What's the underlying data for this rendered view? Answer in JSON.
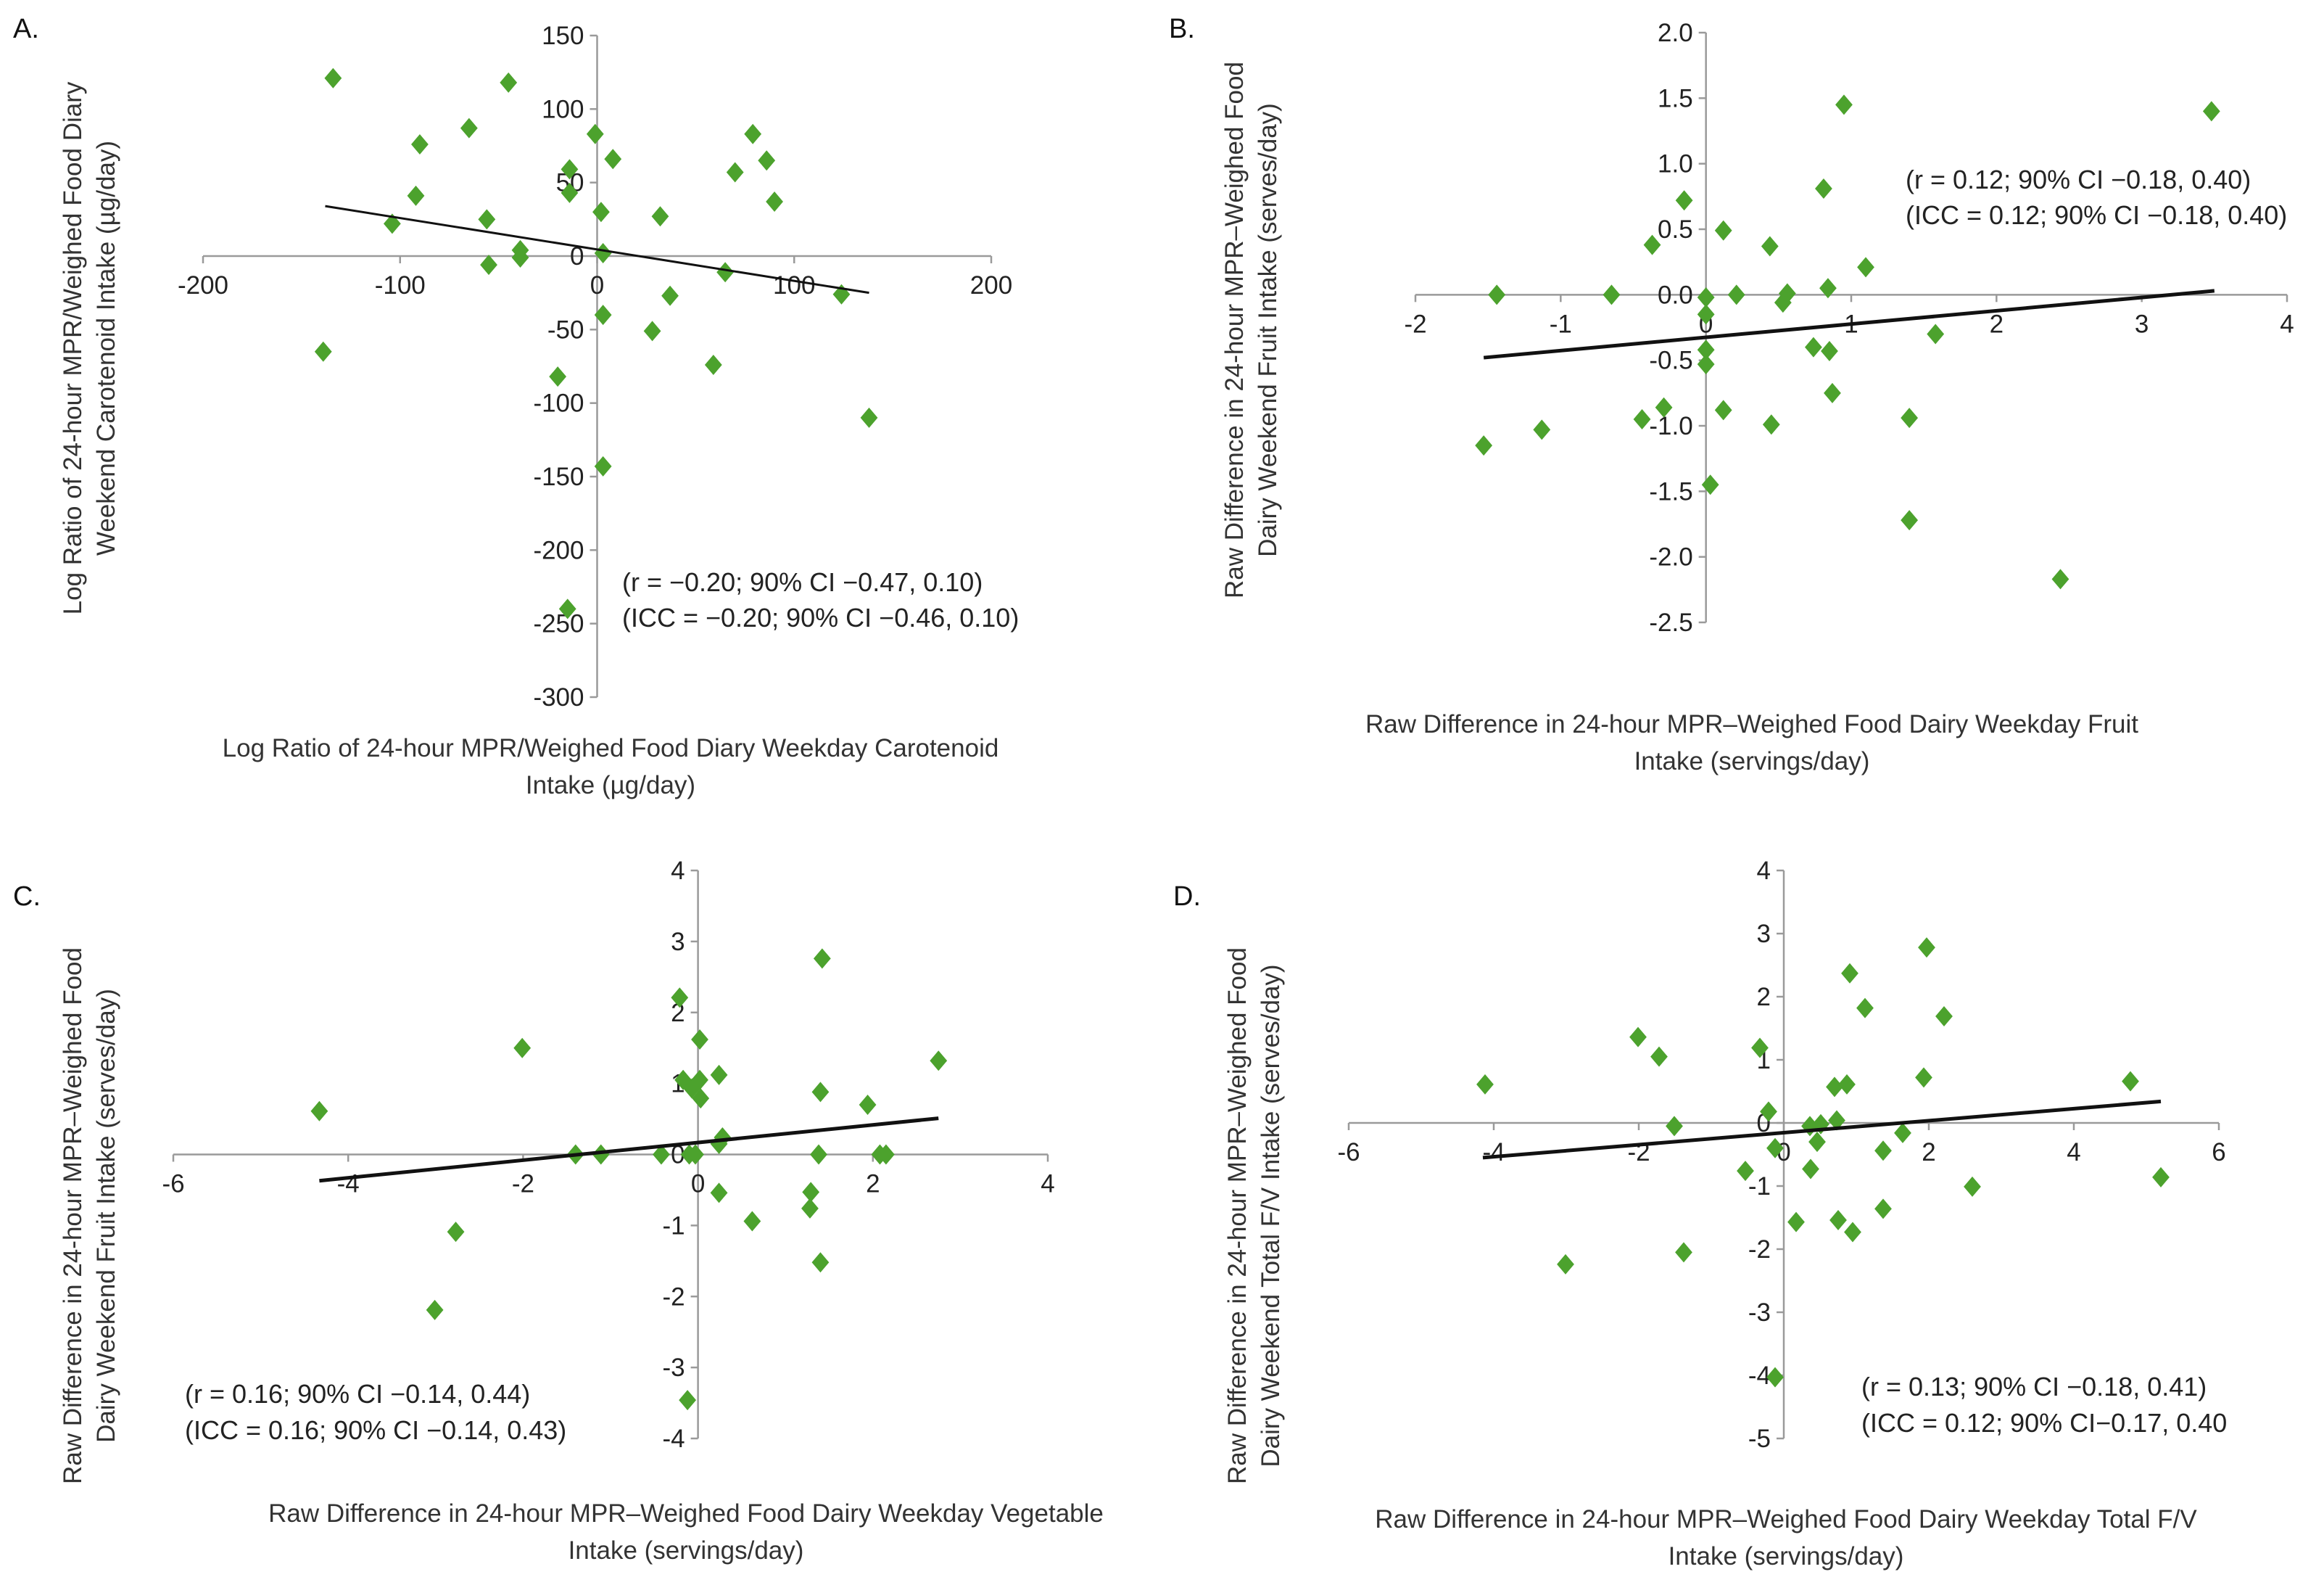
{
  "marker_color": "#4CA22D",
  "trend_color": "#111111",
  "axis_color": "#9a9a9a",
  "chart_data": [
    {
      "type": "scatter",
      "panel": "A.",
      "xlabel": [
        "Log Ratio of 24-hour MPR/Weighed Food Diary Weekday Carotenoid",
        "Intake (µg/day)"
      ],
      "ylabel": [
        "Log Ratio of 24-hour MPR/Weighed Food Diary",
        "Weekend Carotenoid Intake (µg/day)"
      ],
      "xlim": [
        -200,
        200
      ],
      "ylim": [
        -300,
        150
      ],
      "xticks": [
        -200,
        -100,
        0,
        100,
        200
      ],
      "yticks": [
        150,
        100,
        50,
        0,
        -50,
        -100,
        -150,
        -200,
        -250,
        -300
      ],
      "xtick_labels": [
        "-200",
        "-100",
        "0",
        "100",
        "200"
      ],
      "ytick_labels": [
        "150",
        "100",
        "50",
        "0",
        "-50",
        "-100",
        "-150",
        "-200",
        "-250",
        "-300"
      ],
      "annotation": [
        "(r = −0.20; 90% CI −0.47, 0.10)",
        "(ICC = −0.20; 90% CI −0.46, 0.10)"
      ],
      "trendline": [
        [
          -138,
          34
        ],
        [
          138,
          -25
        ]
      ],
      "points": [
        [
          -134,
          121
        ],
        [
          -45,
          118
        ],
        [
          -65,
          87
        ],
        [
          -90,
          76
        ],
        [
          -1,
          83
        ],
        [
          8,
          66
        ],
        [
          -14,
          59
        ],
        [
          79,
          83
        ],
        [
          86,
          65
        ],
        [
          70,
          57
        ],
        [
          -14,
          43
        ],
        [
          -92,
          41
        ],
        [
          90,
          37
        ],
        [
          2,
          30
        ],
        [
          32,
          27
        ],
        [
          -104,
          22
        ],
        [
          -56,
          25
        ],
        [
          -39,
          4
        ],
        [
          -39,
          -1
        ],
        [
          3,
          2
        ],
        [
          -55,
          -6
        ],
        [
          65,
          -11
        ],
        [
          37,
          -27
        ],
        [
          124,
          -26
        ],
        [
          3,
          -40
        ],
        [
          28,
          -51
        ],
        [
          -139,
          -65
        ],
        [
          59,
          -74
        ],
        [
          -20,
          -82
        ],
        [
          138,
          -110
        ],
        [
          3,
          -143
        ],
        [
          -15,
          -240
        ]
      ]
    },
    {
      "type": "scatter",
      "panel": "B.",
      "xlabel": [
        "Raw Difference in 24-hour MPR–Weighed Food Dairy Weekday Fruit",
        "Intake (servings/day)"
      ],
      "ylabel": [
        "Raw Difference in 24-hour MPR–Weighed Food",
        "Dairy Weekend Fruit Intake (serves/day)"
      ],
      "xlim": [
        -2,
        4
      ],
      "ylim": [
        -2.5,
        2.0
      ],
      "xticks": [
        -2,
        -1,
        0,
        1,
        2,
        3,
        4
      ],
      "yticks": [
        2.0,
        1.5,
        1.0,
        0.5,
        0.0,
        -0.5,
        -1.0,
        -1.5,
        -2.0,
        -2.5
      ],
      "xtick_labels": [
        "-2",
        "-1",
        "0",
        "1",
        "2",
        "3",
        "4"
      ],
      "ytick_labels": [
        "2.0",
        "1.5",
        "1.0",
        "0.5",
        "0.0",
        "-0.5",
        "-1.0",
        "-1.5",
        "-2.0",
        "-2.5"
      ],
      "annotation": [
        "(r = 0.12; 90% CI −0.18, 0.40)",
        "(ICC = 0.12; 90% CI −0.18, 0.40)"
      ],
      "trendline": [
        [
          -1.53,
          -0.48
        ],
        [
          3.5,
          0.03
        ]
      ],
      "points": [
        [
          0.95,
          1.45
        ],
        [
          3.48,
          1.4
        ],
        [
          0.81,
          0.81
        ],
        [
          -0.15,
          0.72
        ],
        [
          0.12,
          0.49
        ],
        [
          -0.37,
          0.38
        ],
        [
          0.44,
          0.37
        ],
        [
          1.1,
          0.21
        ],
        [
          -1.44,
          0
        ],
        [
          -0.65,
          0
        ],
        [
          0,
          -0.02
        ],
        [
          0.21,
          0
        ],
        [
          0.56,
          0.01
        ],
        [
          0.53,
          -0.06
        ],
        [
          0.84,
          0.05
        ],
        [
          0,
          -0.15
        ],
        [
          1.58,
          -0.3
        ],
        [
          0,
          -0.42
        ],
        [
          0.74,
          -0.4
        ],
        [
          0.85,
          -0.43
        ],
        [
          0,
          -0.53
        ],
        [
          0.87,
          -0.75
        ],
        [
          -0.29,
          -0.86
        ],
        [
          0.12,
          -0.88
        ],
        [
          -0.44,
          -0.95
        ],
        [
          0.45,
          -0.99
        ],
        [
          1.4,
          -0.94
        ],
        [
          -1.13,
          -1.03
        ],
        [
          -1.53,
          -1.15
        ],
        [
          0.03,
          -1.45
        ],
        [
          1.4,
          -1.72
        ],
        [
          2.44,
          -2.17
        ]
      ]
    },
    {
      "type": "scatter",
      "panel": "C.",
      "xlabel": [
        "Raw Difference in 24-hour MPR–Weighed Food Dairy Weekday Vegetable",
        "Intake (servings/day)"
      ],
      "ylabel": [
        "Raw Difference in 24-hour MPR–Weighed Food",
        "Dairy Weekend Fruit Intake (serves/day)"
      ],
      "xlim": [
        -6,
        4
      ],
      "ylim": [
        -4,
        4
      ],
      "xticks": [
        -6,
        -4,
        -2,
        0,
        2,
        4
      ],
      "yticks": [
        4,
        3,
        2,
        1,
        0,
        -1,
        -2,
        -3,
        -4
      ],
      "xtick_labels": [
        "-6",
        "-4",
        "-2",
        "0",
        "2",
        "4"
      ],
      "ytick_labels": [
        "4",
        "3",
        "2",
        "1",
        "0",
        "-1",
        "-2",
        "-3",
        "-4"
      ],
      "annotation": [
        "(r = 0.16; 90% CI −0.14, 0.44)",
        "(ICC = 0.16; 90% CI −0.14, 0.43)"
      ],
      "trendline": [
        [
          -4.33,
          -0.37
        ],
        [
          2.75,
          0.51
        ]
      ],
      "points": [
        [
          1.42,
          2.76
        ],
        [
          -0.21,
          2.21
        ],
        [
          -2.01,
          1.5
        ],
        [
          0.02,
          1.62
        ],
        [
          2.75,
          1.32
        ],
        [
          -4.33,
          0.61
        ],
        [
          -0.17,
          1.05
        ],
        [
          0.02,
          1.05
        ],
        [
          0.24,
          1.12
        ],
        [
          -0.07,
          0.93
        ],
        [
          0.03,
          0.79
        ],
        [
          1.4,
          0.88
        ],
        [
          1.94,
          0.7
        ],
        [
          0.28,
          0.24
        ],
        [
          0.24,
          0.15
        ],
        [
          -1.4,
          0
        ],
        [
          -1.11,
          0
        ],
        [
          -0.42,
          0
        ],
        [
          -0.1,
          0
        ],
        [
          -0.03,
          0
        ],
        [
          1.38,
          0
        ],
        [
          2.08,
          0
        ],
        [
          2.15,
          0
        ],
        [
          0.24,
          -0.54
        ],
        [
          1.29,
          -0.53
        ],
        [
          1.28,
          -0.76
        ],
        [
          0.62,
          -0.94
        ],
        [
          -2.77,
          -1.09
        ],
        [
          1.4,
          -1.52
        ],
        [
          -3.01,
          -2.19
        ],
        [
          -0.12,
          -3.46
        ]
      ]
    },
    {
      "type": "scatter",
      "panel": "D.",
      "xlabel": [
        "Raw Difference in 24-hour MPR–Weighed Food Dairy Weekday Total F/V",
        "Intake (servings/day)"
      ],
      "ylabel": [
        "Raw Difference in 24-hour MPR–Weighed Food",
        "Dairy Weekend Total F/V Intake (serves/day)"
      ],
      "xlim": [
        -6,
        6
      ],
      "ylim": [
        -5,
        4
      ],
      "xticks": [
        -6,
        -4,
        -2,
        0,
        2,
        4,
        6
      ],
      "yticks": [
        4,
        3,
        2,
        1,
        0,
        -1,
        -2,
        -3,
        -4,
        -5
      ],
      "xtick_labels": [
        "-6",
        "-4",
        "-2",
        "0",
        "2",
        "4",
        "6"
      ],
      "ytick_labels": [
        "4",
        "3",
        "2",
        "1",
        "0",
        "-1",
        "-2",
        "-3",
        "-4",
        "-5"
      ],
      "annotation": [
        "(r = 0.13; 90% CI −0.18, 0.41)",
        "(ICC = 0.12; 90% CI−0.17, 0.40"
      ],
      "trendline": [
        [
          -4.15,
          -0.55
        ],
        [
          5.2,
          0.34
        ]
      ],
      "points": [
        [
          1.97,
          2.78
        ],
        [
          0.91,
          2.37
        ],
        [
          1.12,
          1.82
        ],
        [
          2.21,
          1.69
        ],
        [
          -2.01,
          1.36
        ],
        [
          -1.72,
          1.05
        ],
        [
          -0.33,
          1.19
        ],
        [
          -4.12,
          0.61
        ],
        [
          0.7,
          0.57
        ],
        [
          0.87,
          0.61
        ],
        [
          1.93,
          0.72
        ],
        [
          4.78,
          0.66
        ],
        [
          -0.21,
          0.18
        ],
        [
          0.73,
          0.04
        ],
        [
          -1.51,
          -0.05
        ],
        [
          0.36,
          -0.05
        ],
        [
          0.51,
          -0.02
        ],
        [
          0.46,
          -0.3
        ],
        [
          1.64,
          -0.16
        ],
        [
          -0.12,
          -0.4
        ],
        [
          1.37,
          -0.44
        ],
        [
          -0.53,
          -0.76
        ],
        [
          0.37,
          -0.73
        ],
        [
          5.2,
          -0.86
        ],
        [
          2.6,
          -1.01
        ],
        [
          1.37,
          -1.36
        ],
        [
          0.17,
          -1.57
        ],
        [
          0.75,
          -1.54
        ],
        [
          0.95,
          -1.73
        ],
        [
          -1.38,
          -2.05
        ],
        [
          -3.01,
          -2.24
        ],
        [
          -0.12,
          -4.03
        ]
      ]
    }
  ]
}
